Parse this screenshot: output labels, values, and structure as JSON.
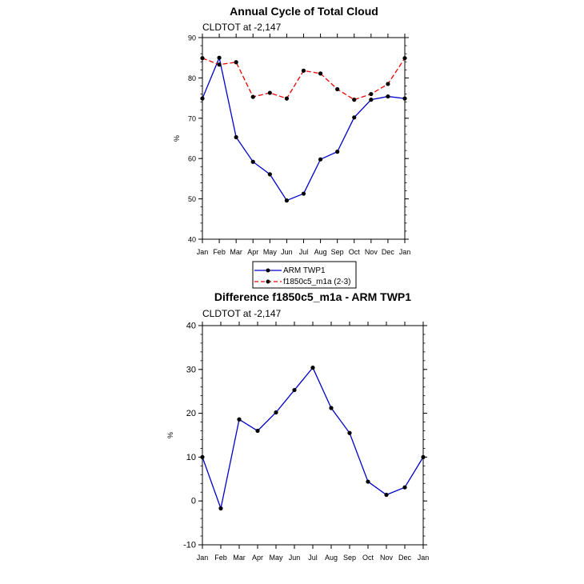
{
  "chart_data": [
    {
      "type": "line",
      "title": "Annual Cycle of Total Cloud",
      "subtitle": "CLDTOT at -2,147",
      "xlabel": "",
      "ylabel": "%",
      "ylim": [
        40,
        90
      ],
      "yticks": [
        40,
        50,
        60,
        70,
        80,
        90
      ],
      "categories": [
        "Jan",
        "Feb",
        "Mar",
        "Apr",
        "May",
        "Jun",
        "Jul",
        "Aug",
        "Sep",
        "Oct",
        "Nov",
        "Dec",
        "Jan"
      ],
      "series": [
        {
          "name": "ARM TWP1",
          "color": "#0000cc",
          "dash": "solid",
          "values": [
            74.9,
            85.0,
            65.3,
            59.2,
            56.1,
            49.6,
            51.3,
            59.8,
            61.7,
            70.2,
            74.6,
            75.4,
            74.9
          ]
        },
        {
          "name": "f1850c5_m1a (2-3)",
          "color": "#ee0000",
          "dash": "dashed",
          "values": [
            84.9,
            83.3,
            83.9,
            75.3,
            76.3,
            74.9,
            81.8,
            81.1,
            77.2,
            74.6,
            76.0,
            78.5,
            84.9
          ]
        }
      ],
      "legend": "below"
    },
    {
      "type": "line",
      "title": "Difference f1850c5_m1a - ARM TWP1",
      "subtitle": "CLDTOT at -2,147",
      "xlabel": "",
      "ylabel": "%",
      "ylim": [
        -10,
        40
      ],
      "yticks": [
        -10,
        0,
        10,
        20,
        30,
        40
      ],
      "categories": [
        "Jan",
        "Feb",
        "Mar",
        "Apr",
        "May",
        "Jun",
        "Jul",
        "Aug",
        "Sep",
        "Oct",
        "Nov",
        "Dec",
        "Jan"
      ],
      "series": [
        {
          "name": "difference",
          "color": "#0000cc",
          "dash": "solid",
          "values": [
            10.0,
            -1.7,
            18.6,
            16.0,
            20.2,
            25.3,
            30.4,
            21.2,
            15.5,
            4.4,
            1.4,
            3.1,
            10.0
          ]
        }
      ]
    }
  ]
}
